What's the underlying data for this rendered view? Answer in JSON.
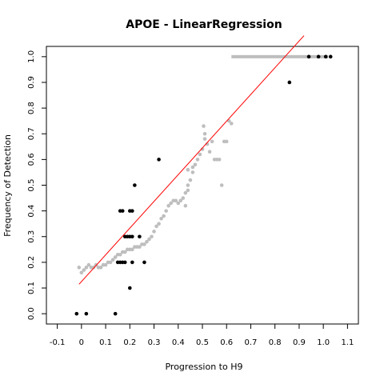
{
  "chart_data": {
    "type": "scatter",
    "title": "APOE - LinearRegression",
    "xlabel": "Progression to H9",
    "ylabel": "Frequency of Detection",
    "xlim": [
      -0.145,
      1.145
    ],
    "ylim": [
      -0.04,
      1.04
    ],
    "xticks": [
      "-0.1",
      "0",
      "0.1",
      "0.2",
      "0.3",
      "0.4",
      "0.5",
      "0.6",
      "0.7",
      "0.8",
      "0.9",
      "1.0",
      "1.1"
    ],
    "yticks": [
      "0.0",
      "0.1",
      "0.2",
      "0.3",
      "0.4",
      "0.5",
      "0.6",
      "0.7",
      "0.8",
      "0.9",
      "1.0"
    ],
    "series": [
      {
        "color": "#bebebe",
        "points": [
          [
            -0.01,
            0.18
          ],
          [
            0.0,
            0.16
          ],
          [
            0.01,
            0.17
          ],
          [
            0.02,
            0.18
          ],
          [
            0.03,
            0.19
          ],
          [
            0.04,
            0.18
          ],
          [
            0.05,
            0.18
          ],
          [
            0.06,
            0.19
          ],
          [
            0.07,
            0.18
          ],
          [
            0.08,
            0.18
          ],
          [
            0.09,
            0.19
          ],
          [
            0.1,
            0.19
          ],
          [
            0.11,
            0.2
          ],
          [
            0.12,
            0.2
          ],
          [
            0.13,
            0.21
          ],
          [
            0.14,
            0.22
          ],
          [
            0.15,
            0.23
          ],
          [
            0.16,
            0.23
          ],
          [
            0.17,
            0.24
          ],
          [
            0.18,
            0.24
          ],
          [
            0.19,
            0.25
          ],
          [
            0.2,
            0.25
          ],
          [
            0.21,
            0.25
          ],
          [
            0.22,
            0.26
          ],
          [
            0.23,
            0.26
          ],
          [
            0.24,
            0.26
          ],
          [
            0.25,
            0.27
          ],
          [
            0.26,
            0.27
          ],
          [
            0.27,
            0.28
          ],
          [
            0.28,
            0.29
          ],
          [
            0.29,
            0.3
          ],
          [
            0.3,
            0.32
          ],
          [
            0.31,
            0.34
          ],
          [
            0.32,
            0.35
          ],
          [
            0.33,
            0.37
          ],
          [
            0.34,
            0.38
          ],
          [
            0.35,
            0.4
          ],
          [
            0.36,
            0.42
          ],
          [
            0.37,
            0.43
          ],
          [
            0.38,
            0.44
          ],
          [
            0.39,
            0.44
          ],
          [
            0.4,
            0.43
          ],
          [
            0.41,
            0.44
          ],
          [
            0.42,
            0.45
          ],
          [
            0.43,
            0.47
          ],
          [
            0.44,
            0.48
          ],
          [
            0.44,
            0.5
          ],
          [
            0.45,
            0.52
          ],
          [
            0.46,
            0.55
          ],
          [
            0.46,
            0.57
          ],
          [
            0.47,
            0.58
          ],
          [
            0.48,
            0.6
          ],
          [
            0.49,
            0.62
          ],
          [
            0.5,
            0.64
          ],
          [
            0.51,
            0.68
          ],
          [
            0.51,
            0.7
          ],
          [
            0.52,
            0.66
          ],
          [
            0.53,
            0.63
          ],
          [
            0.54,
            0.67
          ],
          [
            0.55,
            0.6
          ],
          [
            0.56,
            0.6
          ],
          [
            0.57,
            0.6
          ],
          [
            0.58,
            0.5
          ],
          [
            0.59,
            0.67
          ],
          [
            0.6,
            0.67
          ],
          [
            0.61,
            0.75
          ],
          [
            0.62,
            0.74
          ],
          [
            0.505,
            0.73
          ],
          [
            0.43,
            0.42
          ],
          [
            0.44,
            0.56
          ]
        ],
        "hline": {
          "y": 1.0,
          "x_from": 0.62,
          "x_to": 1.02
        }
      },
      {
        "color": "#000000",
        "points": [
          [
            -0.02,
            0.0
          ],
          [
            0.02,
            0.0
          ],
          [
            0.14,
            0.0
          ],
          [
            0.15,
            0.2
          ],
          [
            0.16,
            0.2
          ],
          [
            0.17,
            0.2
          ],
          [
            0.18,
            0.2
          ],
          [
            0.16,
            0.4
          ],
          [
            0.17,
            0.4
          ],
          [
            0.2,
            0.4
          ],
          [
            0.21,
            0.4
          ],
          [
            0.18,
            0.3
          ],
          [
            0.19,
            0.3
          ],
          [
            0.2,
            0.3
          ],
          [
            0.21,
            0.3
          ],
          [
            0.24,
            0.3
          ],
          [
            0.2,
            0.1
          ],
          [
            0.21,
            0.2
          ],
          [
            0.26,
            0.2
          ],
          [
            0.22,
            0.5
          ],
          [
            0.32,
            0.6
          ],
          [
            0.86,
            0.9
          ],
          [
            0.94,
            1.0
          ],
          [
            0.98,
            1.0
          ],
          [
            1.01,
            1.0
          ],
          [
            1.03,
            1.0
          ]
        ]
      }
    ],
    "fit_line": {
      "color": "#ff0000",
      "slope": 1.04,
      "intercept": 0.125,
      "x_from": -0.01,
      "x_to": 0.92
    }
  }
}
